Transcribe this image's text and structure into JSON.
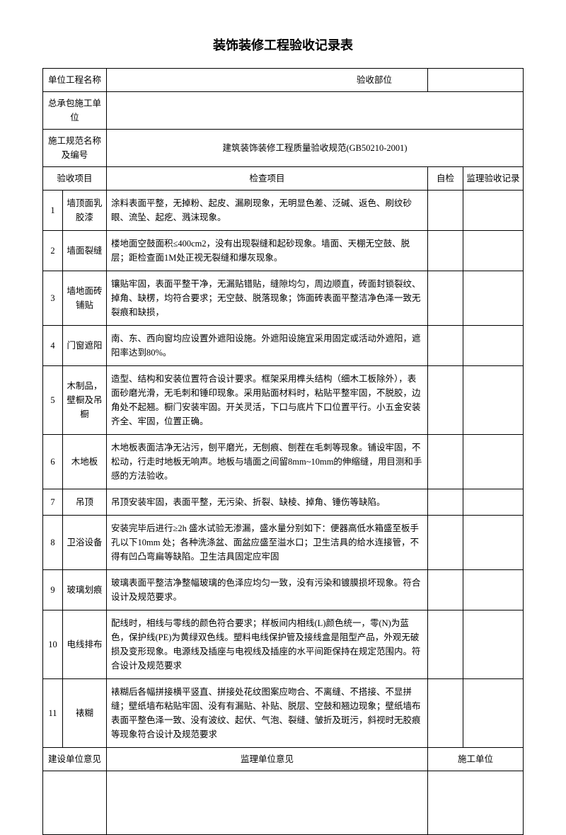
{
  "title": "装饰装修工程验收记录表",
  "header": {
    "unit_project_label": "单位工程名称",
    "accept_part_label": "验收部位",
    "contractor_label": "总承包施工单位",
    "spec_label": "施工规范名称及编号",
    "spec_value": "建筑装饰装修工程质量验收规范(GB50210-2001)"
  },
  "columns": {
    "accept_item": "验收项目",
    "check_item": "检查项目",
    "self_check": "自检",
    "supervisor_record": "监理验收记录"
  },
  "rows": [
    {
      "n": "1",
      "item": "墙顶面乳胶漆",
      "desc": "涂料表面平整，无掉粉、起皮、漏刷现象，无明显色差、泛碱、返色、刷纹砂眼、流坠、起疙、溅沫现象。"
    },
    {
      "n": "2",
      "item": "墙面裂缝",
      "desc": "楼地面空鼓面积≤400cm2，没有出现裂缝和起砂现象。墙面、天棚无空鼓、脱层；距检查面1M处正视无裂缝和爆灰现象。"
    },
    {
      "n": "3",
      "item": "墙地面砖铺贴",
      "desc": "镶贴牢固，表面平整干净，无漏贴错贴，缝隙均匀，周边顺直，砖面封锁裂纹、掉角、缺楞，均符合要求；无空鼓、脱落现象；饰面砖表面平整洁净色泽一致无裂痕和缺损，"
    },
    {
      "n": "4",
      "item": "门窗遮阳",
      "desc": "南、东、西向窗均应设置外遮阳设施。外遮阳设施宜采用固定或活动外遮阳，遮阳率达到80%。"
    },
    {
      "n": "5",
      "item": "木制品，壁橱及吊橱",
      "desc": "造型、结构和安装位置符合设计要求。框架采用榫头结构（细木工板除外），表面砂磨光滑，无毛刺和锤印现象。采用贴面材料时，粘贴平整牢固，不脱胶，边角处不起翘。橱门安装牢固。开关灵活，下口与底片下口位置平行。小五金安装齐全、牢固，位置正确。"
    },
    {
      "n": "6",
      "item": "木地板",
      "desc": "木地板表面洁净无沾污，刨平磨光，无刨痕、刨茬在毛刺等现象。铺设牢固，不松动，行走时地板无响声。地板与墙面之间留8mm~10mm的伸缩缝，用目测和手感的方法验收。"
    },
    {
      "n": "7",
      "item": "吊顶",
      "desc": "吊顶安装牢固，表面平整，无污染、折裂、缺棱、掉角、锤伤等缺陷。"
    },
    {
      "n": "8",
      "item": "卫浴设备",
      "desc": "安装完毕后进行≥2h 盛水试验无渗漏，盛水量分别如下：便器高低水箱盛至板手孔以下10mm 处；各种洗涤盆、面盆应盛至溢水口；卫生洁具的给水连接管，不得有凹凸弯扁等缺陷。卫生洁具固定应牢固"
    },
    {
      "n": "9",
      "item": "玻璃划痕",
      "desc": "玻璃表面平整洁净整幅玻璃的色泽应均匀一致，没有污染和镀膜损坏现象。符合设计及规范要求。"
    },
    {
      "n": "10",
      "item": "电线排布",
      "desc": "配线时，相线与零线的颜色符合要求；样板间内相线(L)颜色统一，零(N)为蓝色，保护线(PE)为黄绿双色线。塑料电线保护管及接线盒是阻型产品，外观无破损及变形现象。电源线及插座与电视线及插座的水平间距保持在规定范围内。符合设计及规范要求"
    },
    {
      "n": "11",
      "item": "裱糊",
      "desc": "裱糊后各幅拼接横平竖直、拼接处花纹图案应吻合、不离缝、不搭接、不显拼缝；壁纸墙布粘贴牢固、没有有漏贴、补贴、脱层、空鼓和翘边现象；壁纸墙布表面平整色泽一致、没有波纹、起伏、气泡、裂缝、皱折及斑污，斜视时无胶痕等现象符合设计及规范要求"
    }
  ],
  "footer": {
    "builder_opinion": "建设单位意见",
    "supervisor_opinion": "监理单位意见",
    "constructor": "施工单位"
  }
}
